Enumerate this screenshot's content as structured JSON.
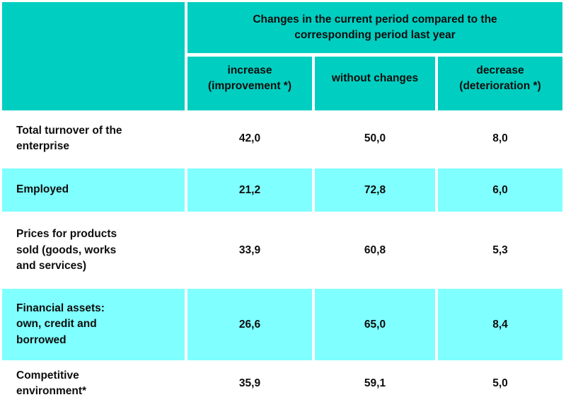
{
  "colors": {
    "teal": "#00CEC0",
    "light_cyan": "#7FFFFF",
    "text": "#0d0d0d",
    "grid_gap": "#ffffff"
  },
  "table": {
    "header": {
      "title": "Changes in the current period compared to the\ncorresponding period last year",
      "columns": [
        "increase\n(improvement *)",
        "without changes",
        "decrease\n(deterioration *)"
      ]
    },
    "rows": [
      {
        "label": "Total turnover of the\nenterprise",
        "values": [
          "42,0",
          "50,0",
          "8,0"
        ],
        "highlight": false
      },
      {
        "label": "Employed",
        "values": [
          "21,2",
          "72,8",
          "6,0"
        ],
        "highlight": true
      },
      {
        "label": "Prices for products\nsold (goods, works\nand services)",
        "values": [
          "33,9",
          "60,8",
          "5,3"
        ],
        "highlight": false
      },
      {
        "label": "Financial assets:\nown, credit and\nborrowed",
        "values": [
          "26,6",
          "65,0",
          "8,4"
        ],
        "highlight": true
      },
      {
        "label": "Competitive\nenvironment*",
        "values": [
          "35,9",
          "59,1",
          "5,0"
        ],
        "highlight": false
      }
    ]
  }
}
